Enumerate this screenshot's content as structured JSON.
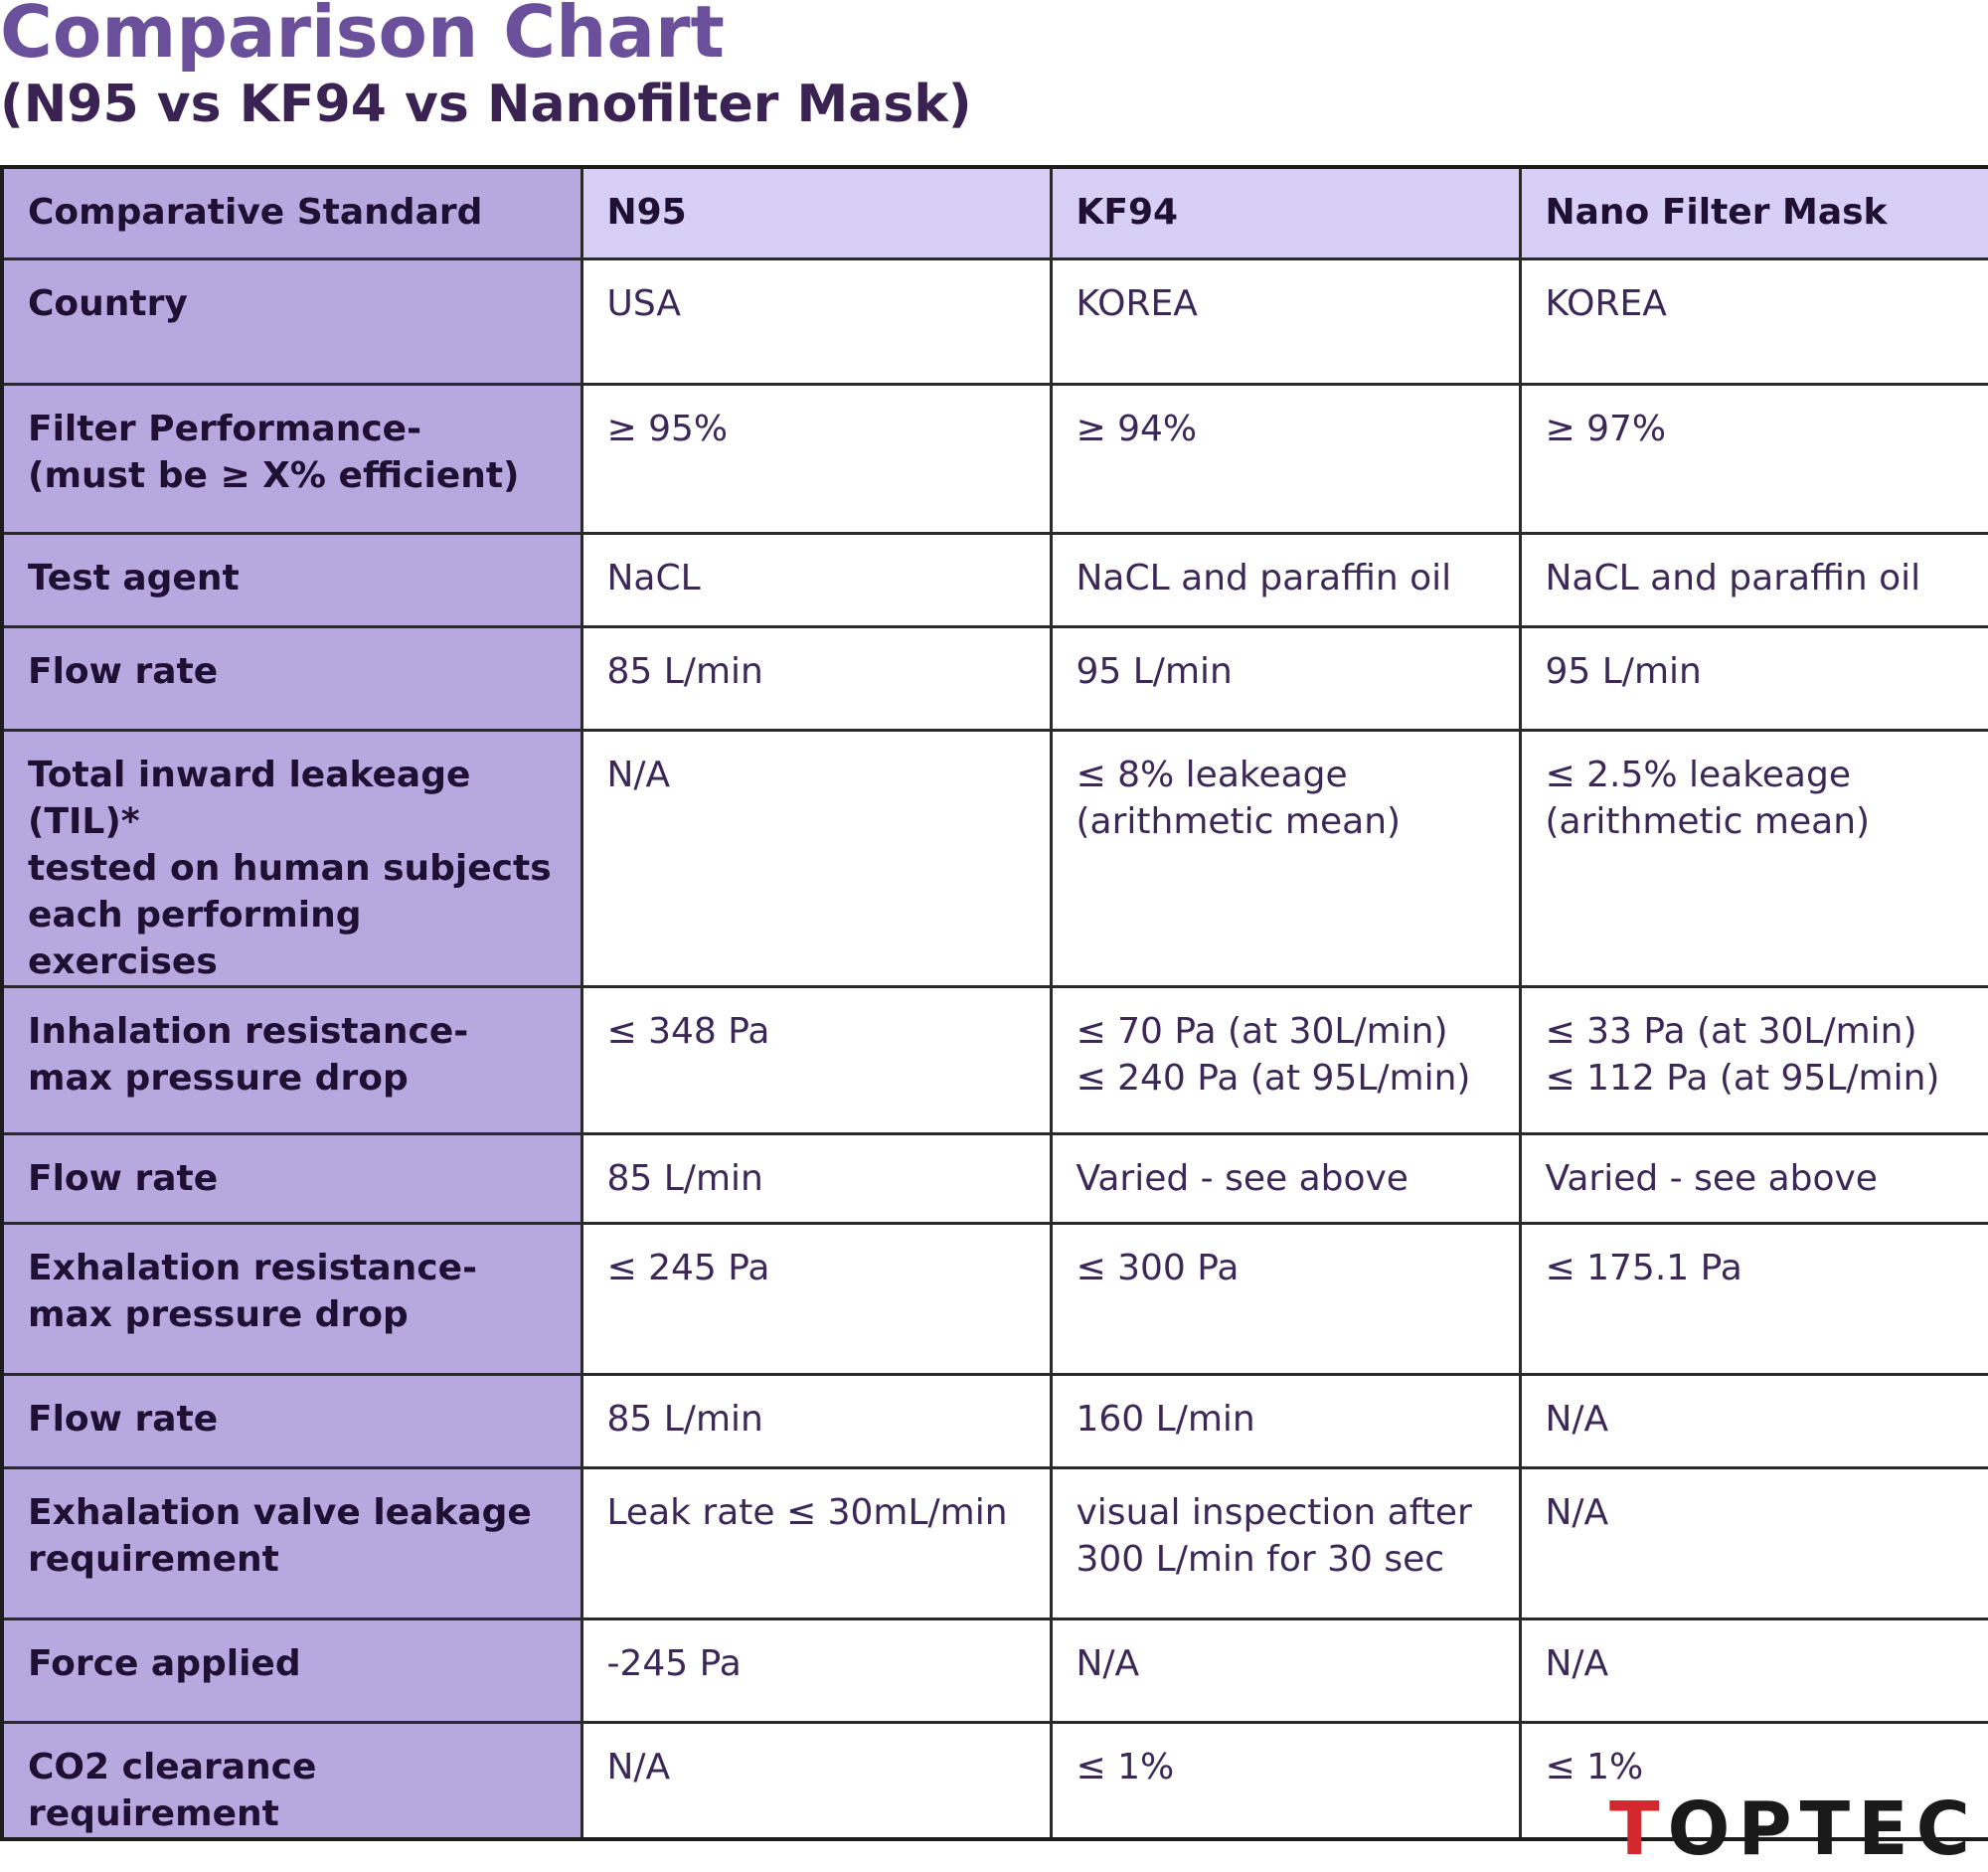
{
  "title": "Comparison Chart",
  "subtitle": "(N95 vs KF94 vs Nanofilter Mask)",
  "table": {
    "headers": [
      "Comparative Standard",
      "N95",
      "KF94",
      "Nano Filter Mask"
    ],
    "rows": [
      {
        "label": "Country",
        "values": [
          "USA",
          "KOREA",
          "KOREA"
        ]
      },
      {
        "label": "Filter Performance-\n(must be ≥ X% efficient)",
        "values": [
          "≥ 95%",
          "≥ 94%",
          "≥ 97%"
        ]
      },
      {
        "label": "Test agent",
        "values": [
          "NaCL",
          "NaCL and paraffin oil",
          "NaCL and paraffin oil"
        ]
      },
      {
        "label": "Flow rate",
        "values": [
          "85 L/min",
          "95 L/min",
          "95 L/min"
        ]
      },
      {
        "label": "Total inward leakeage (TIL)*\ntested on human subjects\neach performing exercises",
        "values": [
          "N/A",
          "≤ 8% leakeage\n(arithmetic mean)",
          "≤ 2.5% leakeage\n(arithmetic mean)"
        ]
      },
      {
        "label": "Inhalation resistance-\nmax pressure drop",
        "values": [
          "≤ 348 Pa",
          "≤ 70 Pa (at 30L/min)\n≤ 240 Pa (at 95L/min)",
          "≤ 33 Pa (at 30L/min)\n≤ 112 Pa (at 95L/min)"
        ]
      },
      {
        "label": "Flow rate",
        "values": [
          "85 L/min",
          "Varied - see above",
          "Varied - see above"
        ]
      },
      {
        "label": "Exhalation resistance-\nmax pressure drop",
        "values": [
          "≤ 245 Pa",
          "≤ 300 Pa",
          "≤ 175.1 Pa"
        ]
      },
      {
        "label": "Flow rate",
        "values": [
          "85 L/min",
          "160 L/min",
          "N/A"
        ]
      },
      {
        "label": "Exhalation valve leakage\nrequirement",
        "values": [
          "Leak rate ≤ 30mL/min",
          "visual inspection after\n300 L/min for 30 sec",
          "N/A"
        ]
      },
      {
        "label": "Force applied",
        "values": [
          "-245 Pa",
          "N/A",
          "N/A"
        ]
      },
      {
        "label": "CO2 clearance requirement",
        "values": [
          "N/A",
          "≤ 1%",
          "≤ 1%"
        ]
      }
    ]
  },
  "logo": {
    "text": "TOPTEC",
    "first_letter_color": "#d4282f",
    "rest_color": "#1a1a1a"
  },
  "colors": {
    "title": "#6a4f9a",
    "label_bg": "#b8a8e0",
    "header_bg": "#d8cff6",
    "text": "#36214f"
  }
}
